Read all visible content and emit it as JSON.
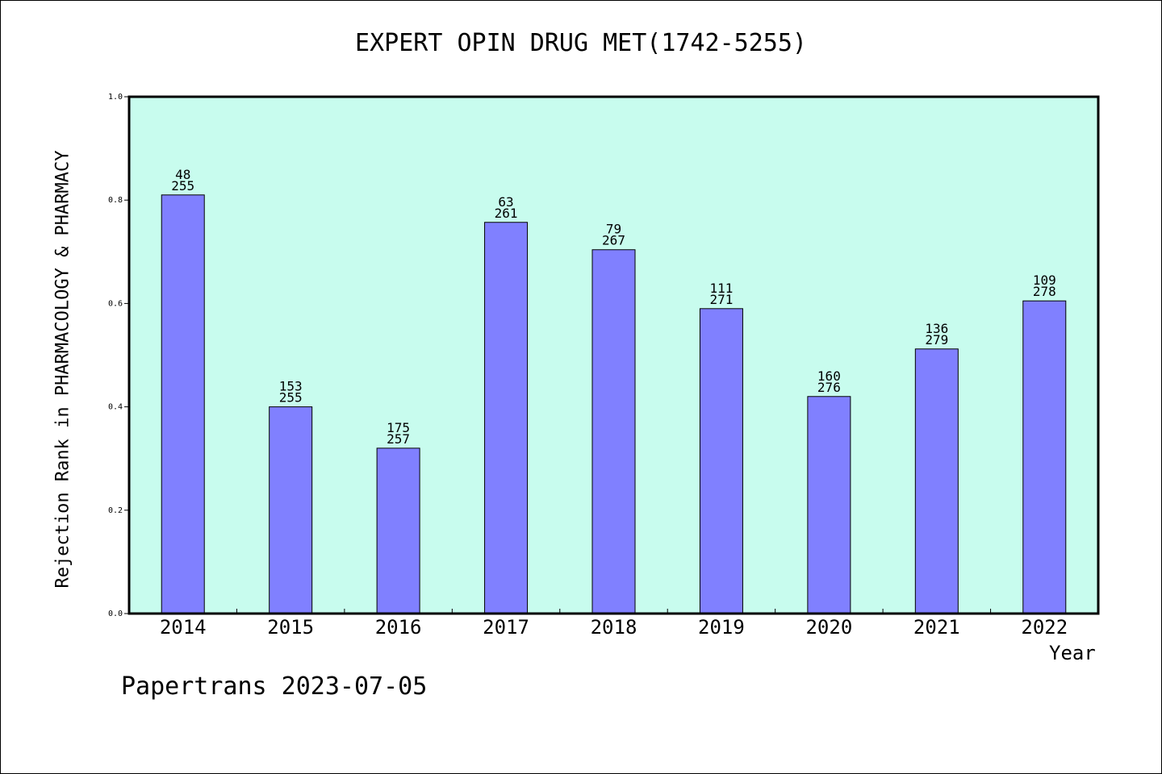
{
  "chart_data": {
    "type": "bar",
    "title": "EXPERT OPIN DRUG MET(1742-5255)",
    "xlabel": "Year",
    "ylabel": "Rejection Rank in PHARMACOLOGY & PHARMACY",
    "categories": [
      "2014",
      "2015",
      "2016",
      "2017",
      "2018",
      "2019",
      "2020",
      "2021",
      "2022"
    ],
    "values": [
      0.81,
      0.4,
      0.32,
      0.757,
      0.704,
      0.59,
      0.42,
      0.512,
      0.605
    ],
    "rank": [
      "48",
      "153",
      "175",
      "63",
      "79",
      "111",
      "160",
      "136",
      "109"
    ],
    "total": [
      "255",
      "255",
      "257",
      "261",
      "267",
      "271",
      "276",
      "279",
      "278"
    ],
    "ylim": [
      0,
      1.0
    ],
    "yticks": [
      "0.0",
      "0.2",
      "0.4",
      "0.6",
      "0.8",
      "1.0"
    ],
    "colors": {
      "plot_background": "#c8fcee",
      "bar_fill": "#8080ff",
      "bar_stroke": "#000000"
    }
  },
  "footer": "Papertrans 2023-07-05"
}
